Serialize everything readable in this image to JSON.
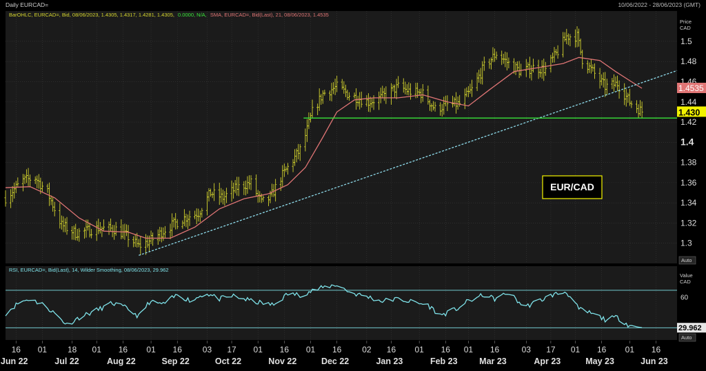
{
  "window": {
    "title": "Daily EURCAD=",
    "date_range": "10/06/2022 - 28/06/2023 (GMT)"
  },
  "colors": {
    "background": "#000000",
    "panel": "#1b1b1b",
    "grid": "#3a3a3a",
    "bars": "#d6d62e",
    "sma": "#e07575",
    "rsi": "#7fe3ea",
    "trendline": "#8fdcec",
    "support": "#39e639"
  },
  "price_panel": {
    "legend_ohlc": "BarOHLC, EURCAD=, Bid, 08/06/2023, 1.4305, 1.4317, 1.4281, 1.4305,",
    "legend_change": "0.0000, N/A,",
    "legend_sma": "SMA, EURCAD=, Bid(Last), 21, 08/06/2023, 1.4535",
    "axis_title_1": "Price",
    "axis_title_2": "CAD",
    "sma_flag": "1.4535",
    "last_flag": "1.430",
    "auto_label": "Auto",
    "annotation": "EUR/CAD"
  },
  "rsi_panel": {
    "legend": "RSI, EURCAD=, Bid(Last), 14, Wilder Smoothing, 08/06/2023, 29.962",
    "axis_title_1": "Value",
    "axis_title_2": "CAD",
    "flag": "29.962",
    "auto_label": "Auto"
  },
  "chart_data": [
    {
      "type": "ohlc",
      "ylim": [
        1.28,
        1.53
      ],
      "yticks": [
        1.3,
        1.32,
        1.34,
        1.36,
        1.38,
        1.4,
        1.42,
        1.44,
        1.46,
        1.48,
        1.5
      ],
      "bold_ytick": 1.4,
      "x_range": [
        "2022-06-10",
        "2023-06-28"
      ],
      "x_day_ticks": [
        {
          "date": "2022-06-16",
          "label": "16"
        },
        {
          "date": "2022-07-01",
          "label": "01"
        },
        {
          "date": "2022-07-18",
          "label": "18"
        },
        {
          "date": "2022-08-01",
          "label": "01"
        },
        {
          "date": "2022-08-16",
          "label": "16"
        },
        {
          "date": "2022-09-01",
          "label": "01"
        },
        {
          "date": "2022-09-16",
          "label": "16"
        },
        {
          "date": "2022-10-03",
          "label": "03"
        },
        {
          "date": "2022-10-17",
          "label": "17"
        },
        {
          "date": "2022-11-01",
          "label": "01"
        },
        {
          "date": "2022-11-16",
          "label": "16"
        },
        {
          "date": "2022-12-01",
          "label": "01"
        },
        {
          "date": "2022-12-16",
          "label": "16"
        },
        {
          "date": "2023-01-02",
          "label": "02"
        },
        {
          "date": "2023-01-16",
          "label": "16"
        },
        {
          "date": "2023-02-01",
          "label": "01"
        },
        {
          "date": "2023-02-16",
          "label": "16"
        },
        {
          "date": "2023-03-01",
          "label": "01"
        },
        {
          "date": "2023-03-16",
          "label": "16"
        },
        {
          "date": "2023-04-03",
          "label": "03"
        },
        {
          "date": "2023-04-17",
          "label": "17"
        },
        {
          "date": "2023-05-01",
          "label": "01"
        },
        {
          "date": "2023-05-16",
          "label": "16"
        },
        {
          "date": "2023-06-01",
          "label": "01"
        },
        {
          "date": "2023-06-16",
          "label": "16"
        }
      ],
      "x_month_labels": [
        {
          "date": "2022-06-15",
          "label": "Jun 22"
        },
        {
          "date": "2022-07-15",
          "label": "Jul 22"
        },
        {
          "date": "2022-08-15",
          "label": "Aug 22"
        },
        {
          "date": "2022-09-15",
          "label": "Sep 22"
        },
        {
          "date": "2022-10-15",
          "label": "Oct 22"
        },
        {
          "date": "2022-11-15",
          "label": "Nov 22"
        },
        {
          "date": "2022-12-15",
          "label": "Dec 22"
        },
        {
          "date": "2023-01-15",
          "label": "Jan 23"
        },
        {
          "date": "2023-02-15",
          "label": "Feb 23"
        },
        {
          "date": "2023-03-15",
          "label": "Mar 23"
        },
        {
          "date": "2023-04-15",
          "label": "Apr 23"
        },
        {
          "date": "2023-05-15",
          "label": "May 23"
        },
        {
          "date": "2023-06-15",
          "label": "Jun 23"
        }
      ],
      "close_path": [
        [
          "2022-06-10",
          1.345
        ],
        [
          "2022-06-20",
          1.362
        ],
        [
          "2022-06-27",
          1.365
        ],
        [
          "2022-07-04",
          1.35
        ],
        [
          "2022-07-12",
          1.318
        ],
        [
          "2022-07-20",
          1.31
        ],
        [
          "2022-08-02",
          1.315
        ],
        [
          "2022-08-12",
          1.314
        ],
        [
          "2022-08-19",
          1.306
        ],
        [
          "2022-08-25",
          1.297
        ],
        [
          "2022-09-02",
          1.304
        ],
        [
          "2022-09-10",
          1.315
        ],
        [
          "2022-09-20",
          1.325
        ],
        [
          "2022-09-28",
          1.33
        ],
        [
          "2022-10-05",
          1.35
        ],
        [
          "2022-10-12",
          1.345
        ],
        [
          "2022-10-20",
          1.355
        ],
        [
          "2022-10-28",
          1.36
        ],
        [
          "2022-11-03",
          1.34
        ],
        [
          "2022-11-08",
          1.345
        ],
        [
          "2022-11-14",
          1.365
        ],
        [
          "2022-11-20",
          1.38
        ],
        [
          "2022-11-26",
          1.395
        ],
        [
          "2022-12-02",
          1.43
        ],
        [
          "2022-12-08",
          1.448
        ],
        [
          "2022-12-16",
          1.455
        ],
        [
          "2022-12-23",
          1.447
        ],
        [
          "2023-01-03",
          1.44
        ],
        [
          "2023-01-10",
          1.444
        ],
        [
          "2023-01-20",
          1.455
        ],
        [
          "2023-01-27",
          1.45
        ],
        [
          "2023-02-03",
          1.448
        ],
        [
          "2023-02-10",
          1.433
        ],
        [
          "2023-02-17",
          1.437
        ],
        [
          "2023-02-24",
          1.438
        ],
        [
          "2023-03-03",
          1.452
        ],
        [
          "2023-03-10",
          1.475
        ],
        [
          "2023-03-17",
          1.488
        ],
        [
          "2023-03-24",
          1.478
        ],
        [
          "2023-03-31",
          1.47
        ],
        [
          "2023-04-07",
          1.474
        ],
        [
          "2023-04-14",
          1.472
        ],
        [
          "2023-04-21",
          1.49
        ],
        [
          "2023-04-26",
          1.505
        ],
        [
          "2023-05-02",
          1.505
        ],
        [
          "2023-05-05",
          1.482
        ],
        [
          "2023-05-11",
          1.47
        ],
        [
          "2023-05-18",
          1.455
        ],
        [
          "2023-05-25",
          1.458
        ],
        [
          "2023-06-01",
          1.44
        ],
        [
          "2023-06-08",
          1.4305
        ]
      ],
      "sma": [
        [
          "2022-06-10",
          1.355
        ],
        [
          "2022-06-24",
          1.356
        ],
        [
          "2022-07-08",
          1.345
        ],
        [
          "2022-07-22",
          1.325
        ],
        [
          "2022-08-05",
          1.312
        ],
        [
          "2022-08-19",
          1.311
        ],
        [
          "2022-08-29",
          1.305
        ],
        [
          "2022-09-12",
          1.305
        ],
        [
          "2022-09-26",
          1.316
        ],
        [
          "2022-10-10",
          1.334
        ],
        [
          "2022-10-24",
          1.344
        ],
        [
          "2022-11-07",
          1.349
        ],
        [
          "2022-11-18",
          1.358
        ],
        [
          "2022-11-28",
          1.375
        ],
        [
          "2022-12-08",
          1.405
        ],
        [
          "2022-12-16",
          1.43
        ],
        [
          "2022-12-26",
          1.442
        ],
        [
          "2023-01-06",
          1.444
        ],
        [
          "2023-01-20",
          1.444
        ],
        [
          "2023-02-03",
          1.447
        ],
        [
          "2023-02-17",
          1.44
        ],
        [
          "2023-03-01",
          1.436
        ],
        [
          "2023-03-13",
          1.452
        ],
        [
          "2023-03-27",
          1.47
        ],
        [
          "2023-04-10",
          1.474
        ],
        [
          "2023-04-24",
          1.478
        ],
        [
          "2023-05-03",
          1.484
        ],
        [
          "2023-05-15",
          1.481
        ],
        [
          "2023-05-24",
          1.47
        ],
        [
          "2023-06-02",
          1.46
        ],
        [
          "2023-06-08",
          1.4535
        ]
      ],
      "trendline": [
        [
          "2022-08-25",
          1.288
        ],
        [
          "2023-06-28",
          1.471
        ]
      ],
      "support_line": {
        "value": 1.424,
        "from": "2022-11-27",
        "to": "2023-06-28"
      },
      "last_price": 1.43,
      "sma_last": 1.4535
    },
    {
      "type": "line",
      "name": "RSI",
      "ylim": [
        18,
        90
      ],
      "yticks": [
        60
      ],
      "reference_lines": [
        66.5,
        29.9
      ],
      "last": 29.962,
      "values": [
        [
          "2022-06-10",
          44
        ],
        [
          "2022-06-18",
          55
        ],
        [
          "2022-06-24",
          58
        ],
        [
          "2022-07-02",
          52
        ],
        [
          "2022-07-08",
          44
        ],
        [
          "2022-07-15",
          33
        ],
        [
          "2022-07-22",
          40
        ],
        [
          "2022-08-01",
          47
        ],
        [
          "2022-08-10",
          54
        ],
        [
          "2022-08-18",
          49
        ],
        [
          "2022-08-25",
          41
        ],
        [
          "2022-08-31",
          55
        ],
        [
          "2022-09-08",
          53
        ],
        [
          "2022-09-16",
          62
        ],
        [
          "2022-09-24",
          56
        ],
        [
          "2022-10-02",
          64
        ],
        [
          "2022-10-10",
          58
        ],
        [
          "2022-10-18",
          61
        ],
        [
          "2022-10-26",
          57
        ],
        [
          "2022-11-03",
          54
        ],
        [
          "2022-11-10",
          52
        ],
        [
          "2022-11-18",
          63
        ],
        [
          "2022-11-25",
          62
        ],
        [
          "2022-12-02",
          66
        ],
        [
          "2022-12-10",
          70
        ],
        [
          "2022-12-16",
          72
        ],
        [
          "2022-12-24",
          64
        ],
        [
          "2023-01-03",
          60
        ],
        [
          "2023-01-10",
          56
        ],
        [
          "2023-01-20",
          58
        ],
        [
          "2023-01-28",
          55
        ],
        [
          "2023-02-06",
          52
        ],
        [
          "2023-02-13",
          42
        ],
        [
          "2023-02-22",
          48
        ],
        [
          "2023-03-01",
          56
        ],
        [
          "2023-03-10",
          62
        ],
        [
          "2023-03-16",
          58
        ],
        [
          "2023-03-24",
          64
        ],
        [
          "2023-04-02",
          50
        ],
        [
          "2023-04-10",
          56
        ],
        [
          "2023-04-18",
          62
        ],
        [
          "2023-04-26",
          65
        ],
        [
          "2023-05-03",
          48
        ],
        [
          "2023-05-10",
          44
        ],
        [
          "2023-05-18",
          38
        ],
        [
          "2023-05-25",
          40
        ],
        [
          "2023-06-01",
          32
        ],
        [
          "2023-06-08",
          29.962
        ]
      ]
    }
  ]
}
